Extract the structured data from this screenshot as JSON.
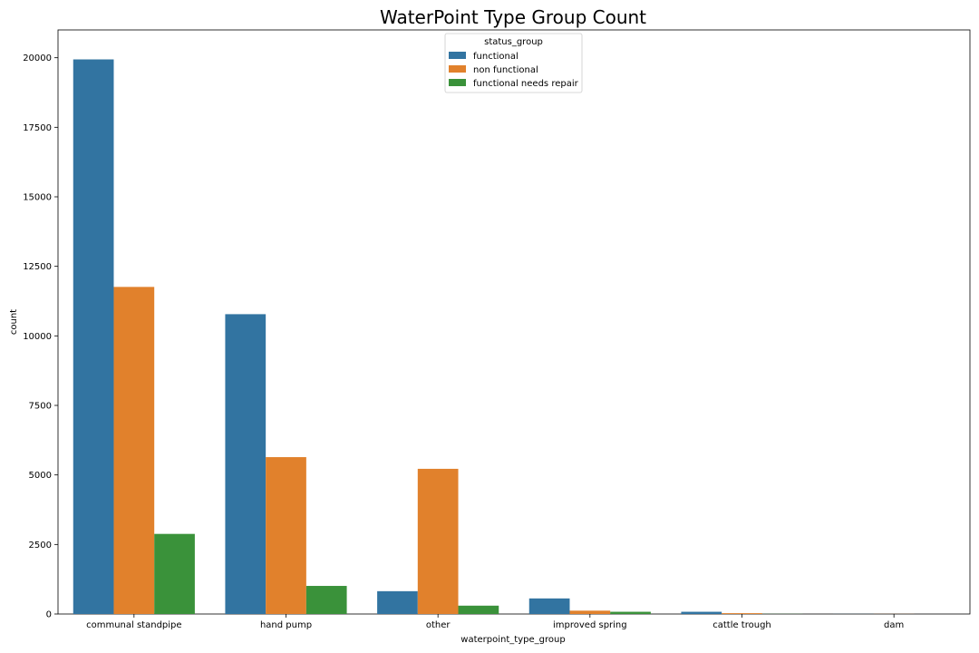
{
  "chart_data": {
    "type": "bar",
    "title": "WaterPoint Type Group Count",
    "xlabel": "waterpoint_type_group",
    "ylabel": "count",
    "ylim": [
      0,
      21000
    ],
    "yticks": [
      0,
      2500,
      5000,
      7500,
      10000,
      12500,
      15000,
      17500,
      20000
    ],
    "categories": [
      "communal standpipe",
      "hand pump",
      "other",
      "improved spring",
      "cattle trough",
      "dam"
    ],
    "series": [
      {
        "name": "functional",
        "color": "#3274a1",
        "values": [
          19940,
          10780,
          820,
          560,
          80,
          3
        ]
      },
      {
        "name": "non functional",
        "color": "#e1812c",
        "values": [
          11760,
          5640,
          5220,
          120,
          30,
          3
        ]
      },
      {
        "name": "functional needs repair",
        "color": "#3a923a",
        "values": [
          2880,
          1010,
          300,
          80,
          5,
          0
        ]
      }
    ],
    "legend": {
      "title": "status_group",
      "position": "top-center"
    },
    "grid": false
  }
}
